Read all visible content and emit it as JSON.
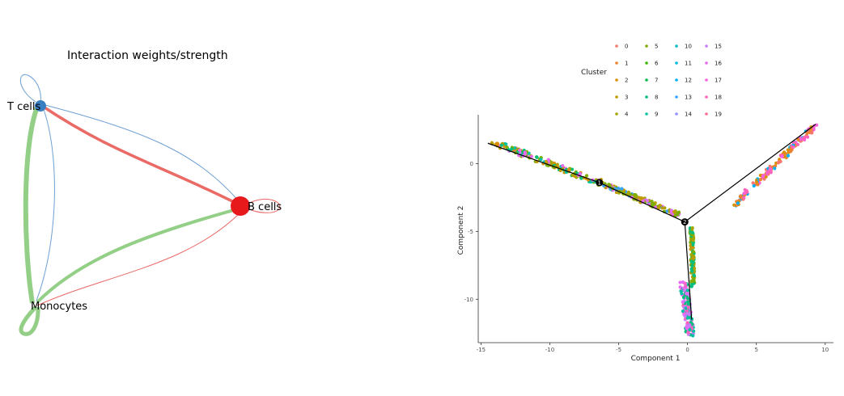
{
  "network": {
    "title": "Interaction weights/strength",
    "nodes": [
      {
        "id": "tcells",
        "label": "T cells",
        "color": "#3a7fc1"
      },
      {
        "id": "bcells",
        "label": "B cells",
        "color": "#e8191b"
      },
      {
        "id": "mono",
        "label": "Monocytes",
        "color": "#9fd08f"
      }
    ],
    "colors": {
      "tcells": "#6fa0d4",
      "bcells": "#ea6a66",
      "mono": "#93cf86"
    }
  },
  "chart_data": {
    "type": "scatter",
    "title": "",
    "xlabel": "Component 1",
    "ylabel": "Component 2",
    "xlim": [
      -15.2,
      10.6
    ],
    "ylim": [
      -13.2,
      3.6
    ],
    "xticks": [
      -15,
      -10,
      -5,
      0,
      5,
      10
    ],
    "xtick_labels": [
      "-15",
      "-10",
      "-5",
      "0",
      "5",
      "10"
    ],
    "yticks": [
      0,
      -5,
      -10
    ],
    "ytick_labels": [
      "0",
      "-5",
      "-10"
    ],
    "grid": false,
    "legend": {
      "title": "Cluster",
      "placement": "top",
      "items": [
        "0",
        "1",
        "2",
        "3",
        "4",
        "5",
        "6",
        "7",
        "8",
        "9",
        "10",
        "11",
        "12",
        "13",
        "14",
        "15",
        "16",
        "17",
        "18",
        "19"
      ],
      "colors": [
        "#f8766d",
        "#ea8331",
        "#d89000",
        "#c09b00",
        "#a3a500",
        "#7cae00",
        "#39b600",
        "#00bb4e",
        "#00bf7d",
        "#00c1a3",
        "#00bfc4",
        "#00bae0",
        "#00b0f6",
        "#35a2ff",
        "#9590ff",
        "#c77cff",
        "#e76bf3",
        "#fa62db",
        "#ff62bc",
        "#ff6c91"
      ]
    },
    "trajectory": {
      "branch_points": [
        {
          "label": "1",
          "x": -6.4,
          "y": -1.4
        },
        {
          "label": "2",
          "x": -0.2,
          "y": -4.3
        }
      ],
      "segments": [
        [
          [
            -14.5,
            1.5
          ],
          [
            -6.4,
            -1.4
          ]
        ],
        [
          [
            -6.4,
            -1.4
          ],
          [
            -0.2,
            -4.3
          ]
        ],
        [
          [
            -0.2,
            -4.3
          ],
          [
            9.3,
            2.9
          ]
        ],
        [
          [
            -0.2,
            -4.3
          ],
          [
            0.3,
            -11.5
          ]
        ]
      ]
    },
    "branches": [
      {
        "name": "upper-left",
        "x_start": -14.2,
        "y_start": 1.6,
        "x_end": -6.4,
        "y_end": -1.4,
        "spread": 0.45,
        "clusters": [
          "3",
          "4",
          "5",
          "8",
          "9",
          "16",
          "2"
        ]
      },
      {
        "name": "middle-left",
        "x_start": -6.4,
        "y_start": -1.4,
        "x_end": -0.6,
        "y_end": -3.8,
        "spread": 0.35,
        "clusters": [
          "3",
          "4",
          "5",
          "13",
          "16"
        ]
      },
      {
        "name": "right",
        "x_start": 3.2,
        "y_start": -3.2,
        "x_end": 9.3,
        "y_end": 2.8,
        "spread": 0.35,
        "clusters": [
          "1",
          "0",
          "2",
          "12",
          "17",
          "18"
        ]
      },
      {
        "name": "down",
        "x_start": 0.3,
        "y_start": -4.8,
        "x_end": 0.4,
        "y_end": -9.0,
        "spread": 0.25,
        "clusters": [
          "3",
          "4",
          "5",
          "8"
        ]
      },
      {
        "name": "bottom",
        "x_start": -0.3,
        "y_start": -9.0,
        "x_end": 0.2,
        "y_end": -12.6,
        "spread": 0.6,
        "clusters": [
          "16",
          "9",
          "8",
          "15",
          "18"
        ]
      }
    ]
  }
}
